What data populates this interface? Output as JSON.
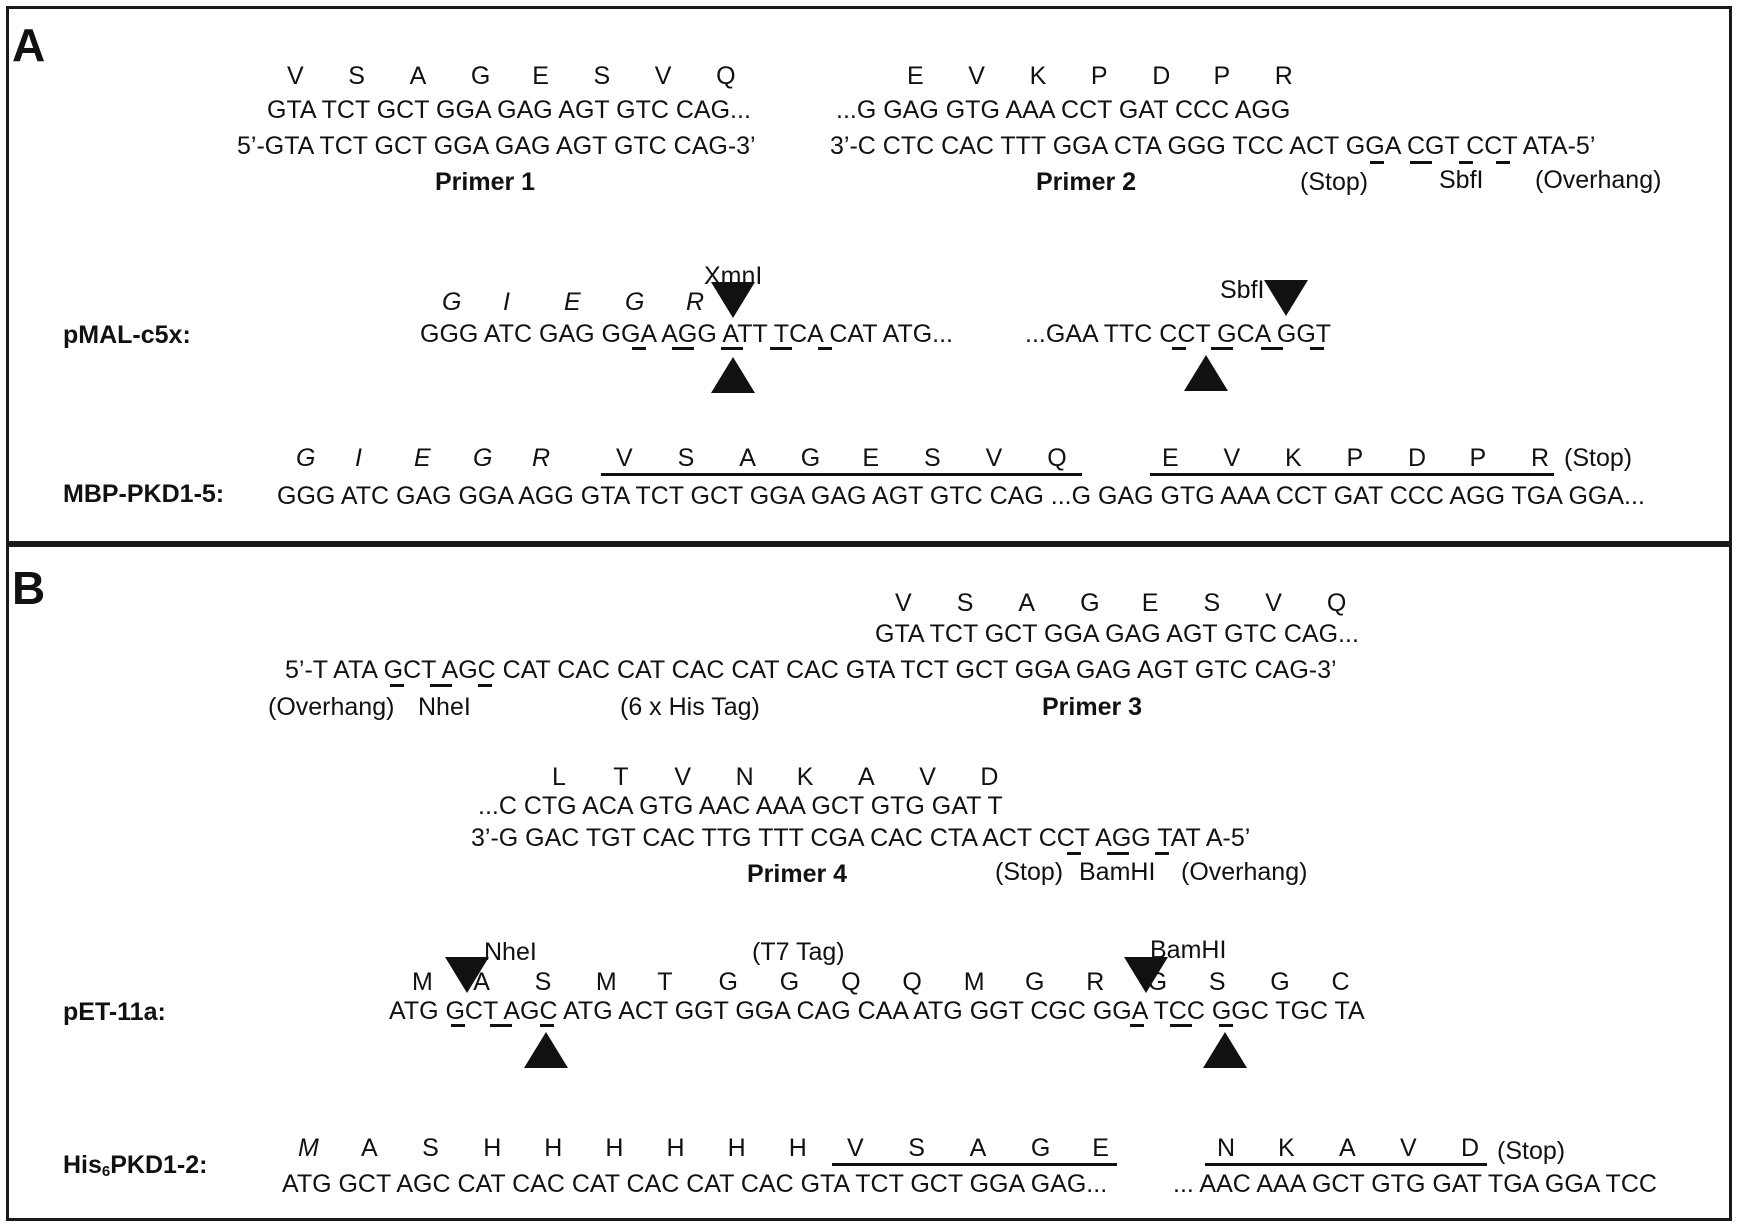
{
  "panels": {
    "a": {
      "label": "A",
      "aa1": [
        "V",
        "S",
        "A",
        "G",
        "E",
        "S",
        "V",
        "Q"
      ],
      "seq1": "GTA TCT GCT GGA GAG AGT GTC CAG...",
      "primer1_seq": "5’-GTA TCT GCT GGA GAG AGT GTC CAG-3’",
      "primer1_name": "Primer 1",
      "aa2": [
        "E",
        "V",
        "K",
        "P",
        "D",
        "P",
        "R"
      ],
      "seq2": "...G GAG GTG AAA CCT GAT CCC AGG",
      "primer2_seq": "3’-C CTC CAC TTT GGA CTA GGG TCC ACT GGA CGT CCT ATA-5’",
      "primer2_name": "Primer 2",
      "primer2_stop": "(Stop)",
      "primer2_site": "SbfI",
      "primer2_overhang": "(Overhang)",
      "pmal_label": "pMAL-c5x:",
      "pmal_aa": [
        "G",
        "I",
        "E",
        "G",
        "R"
      ],
      "pmal_seq1": "GGG ATC GAG GGA AGG ATT TCA CAT ATG...",
      "pmal_seq2": "...GAA TTC CCT GCA GGT",
      "pmal_site1": "XmnI",
      "pmal_site2": "SbfI",
      "mbp_label": "MBP-PKD1-5:",
      "mbp_aa_italic": [
        "G",
        "I",
        "E",
        "G",
        "R"
      ],
      "mbp_aa1": [
        "V",
        "S",
        "A",
        "G",
        "E",
        "S",
        "V",
        "Q"
      ],
      "mbp_aa2": [
        "E",
        "V",
        "K",
        "P",
        "D",
        "P",
        "R"
      ],
      "mbp_stop": "(Stop)",
      "mbp_seq": "GGG ATC GAG GGA AGG GTA TCT GCT GGA GAG AGT GTC CAG ...G GAG GTG AAA CCT GAT CCC AGG TGA GGA..."
    },
    "b": {
      "label": "B",
      "aa3": [
        "V",
        "S",
        "A",
        "G",
        "E",
        "S",
        "V",
        "Q"
      ],
      "seq3": "GTA TCT GCT GGA GAG AGT GTC CAG...",
      "primer3_seq": "5’-T ATA GCT AGC CAT CAC CAT CAC CAT CAC GTA TCT GCT GGA GAG AGT GTC CAG-3’",
      "primer3_overhang": "(Overhang)",
      "primer3_site": "NheI",
      "primer3_tag": "(6 x His Tag)",
      "primer3_name": "Primer 3",
      "aa4": [
        "L",
        "T",
        "V",
        "N",
        "K",
        "A",
        "V",
        "D"
      ],
      "seq4": "...C CTG ACA GTG AAC AAA GCT GTG GAT T",
      "primer4_seq": "3’-G GAC TGT CAC TTG TTT CGA CAC CTA ACT CCT AGG TAT A-5’",
      "primer4_name": "Primer 4",
      "primer4_stop": "(Stop)",
      "primer4_site": "BamHI",
      "primer4_overhang": "(Overhang)",
      "pet_label": "pET-11a:",
      "pet_site1": "NheI",
      "pet_tag": "(T7 Tag)",
      "pet_site2": "BamHI",
      "pet_aa": [
        "M",
        "A",
        "S",
        "M",
        "T",
        "G",
        "G",
        "Q",
        "Q",
        "M",
        "G",
        "R",
        "G",
        "S",
        "G",
        "C"
      ],
      "pet_seq": "ATG GCT AGC ATG ACT GGT GGA CAG CAA ATG GGT CGC GGA TCC GGC TGC TA",
      "his_label_pre": "His",
      "his_label_sub": "6",
      "his_label_post": "PKD1-2:",
      "his_aa_m": "M",
      "his_aa1": [
        "A",
        "S",
        "H",
        "H",
        "H",
        "H",
        "H",
        "H"
      ],
      "his_aa2": [
        "V",
        "S",
        "A",
        "G",
        "E"
      ],
      "his_aa3": [
        "N",
        "K",
        "A",
        "V",
        "D"
      ],
      "his_stop": "(Stop)",
      "his_seq1": "ATG GCT AGC CAT CAC CAT CAC CAT CAC GTA TCT GCT GGA GAG...",
      "his_seq2": "... AAC AAA GCT GTG GAT TGA GGA TCC"
    }
  }
}
